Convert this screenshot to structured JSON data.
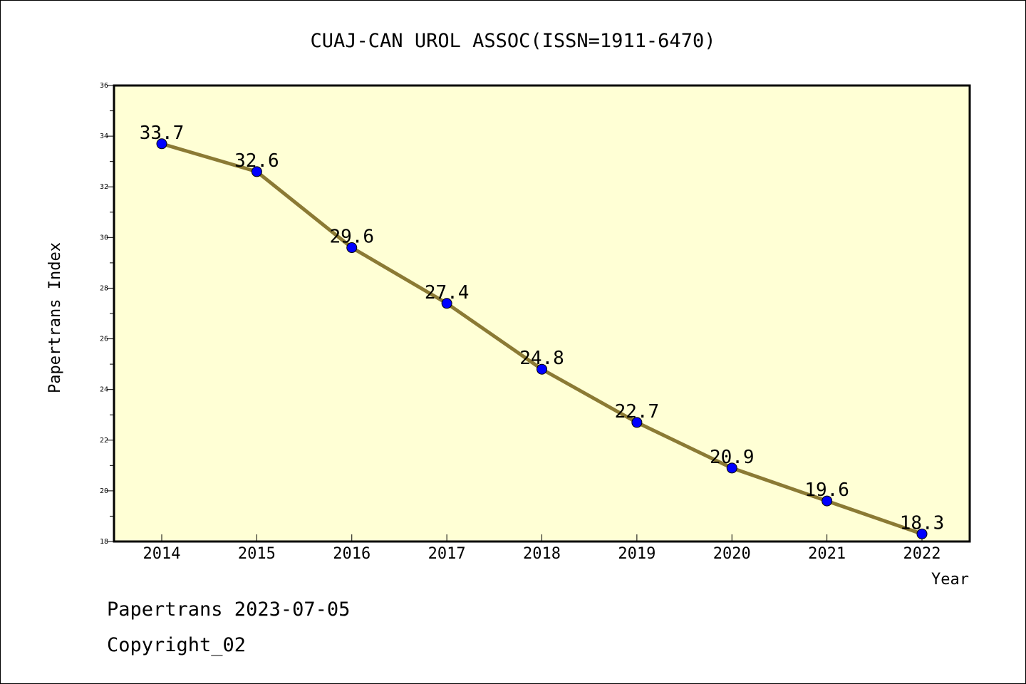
{
  "chart_data": {
    "type": "line",
    "title": "CUAJ-CAN UROL ASSOC(ISSN=1911-6470)",
    "xlabel": "Year",
    "ylabel": "Papertrans Index",
    "categories": [
      "2014",
      "2015",
      "2016",
      "2017",
      "2018",
      "2019",
      "2020",
      "2021",
      "2022"
    ],
    "values": [
      33.7,
      32.6,
      29.6,
      27.4,
      24.8,
      22.7,
      20.9,
      19.6,
      18.3
    ],
    "data_labels": [
      "33.7",
      "32.6",
      "29.6",
      "27.4",
      "24.8",
      "22.7",
      "20.9",
      "19.6",
      "18.3"
    ],
    "ylim": [
      18,
      36
    ],
    "yticks": [
      18,
      20,
      22,
      24,
      26,
      28,
      30,
      32,
      34,
      36
    ],
    "grid": false,
    "legend": "none",
    "colors": {
      "line": "#8b7a34",
      "marker": "#0000ff",
      "plot_background": "#ffffd5"
    }
  },
  "footer": {
    "line1": "Papertrans 2023-07-05",
    "line2": "Copyright_02"
  }
}
